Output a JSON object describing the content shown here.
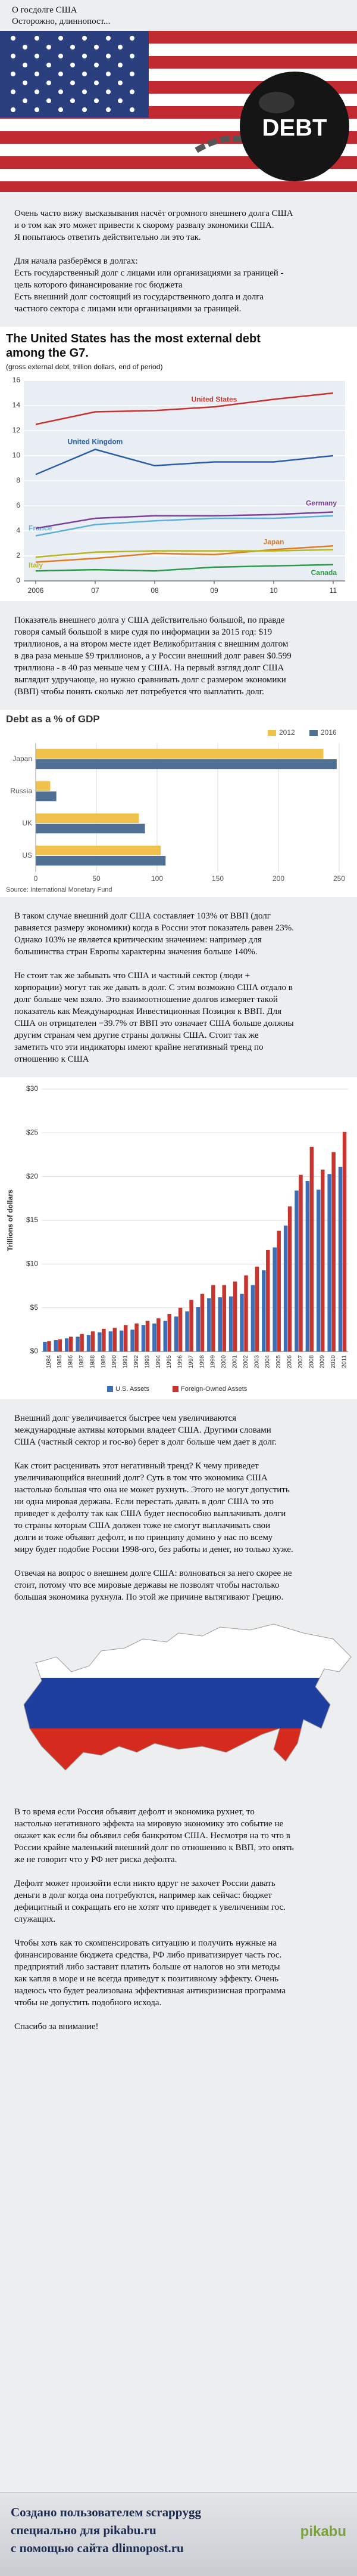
{
  "post": {
    "heading": "О госдолге США",
    "warning": "Осторожно, длиннопост...",
    "image_text": "DEBT",
    "paragraphs": [
      "Очень часто вижу высказывания насчёт огромного внешнего долга США и о том как это может привести к скорому развалу экономики США.",
      "Я попытаюсь ответить действительно ли это так.",
      "Для начала разберёмся в долгах:",
      "Есть государственный долг с лицами или организациями за границей - цель которого финансирование гос бюджета",
      "Есть внешний долг состоящий из государственного долга и долга частного сектора с лицами или организациями за границей.",
      "Показатель внешнего долга у США действительно большой, по правде говоря самый большой в мире судя по информации за 2015 год: $19 триллионов, а на втором месте идет Великобритания с внешним долгом в два раза меньше $9 триллионов, а у России внешний долг равен $0.599 триллиона - в 40 раз меньше чем у США. На первый взгляд долг США выглядит удручающе, но нужно сравнивать долг с размером экономики (ВВП) чтобы понять сколько лет потребуется что выплатить долг.",
      "В таком случае внешний долг США составляет 103% от ВВП (долг равняется размеру экономики) когда в России этот показатель равен 23%. Однако 103% не является критическим значением: например для большинства стран Европы характерны значения больше 140%.",
      "Не стоит так же забывать что США и частный сектор (люди + корпорации) могут так же давать в долг. С этим возможно США отдало в долг больше чем взяло. Это взаимоотношение долгов измеряет такой показатель как Международная Инвестиционная Позиция к ВВП. Для США он отрицателен −39.7% от ВВП это означает США больше должны другим странам чем другие страны должны США. Стоит так же заметить что эти индикаторы имеют крайне негативный тренд по отношению к США",
      "Внешний долг увеличивается быстрее чем увеличиваются международные активы которыми владеет США. Другими словами США (частный сектор и гос-во) берет в долг больше чем дает в долг.",
      "Как стоит расценивать этот негативный тренд? К чему приведет увеличивающийся внешний долг? Суть в том что экономика США настолько большая что она не может рухнуть. Этого не могут допустить ни одна мировая держава. Если перестать давать в долг США то это приведет к дефолту так как США будет неспособно выплачивать долги то страны которым США должен тоже не смогут выплачивать свои долги и тоже объявят дефолт, и по принципу домино у нас по всему миру будет подобие России 1998-ого, без работы и денег, но только хуже.",
      "Отвечая на вопрос о внешнем долге США: волноваться за него скорее не стоит, потому что все мировые державы не позволят чтобы настолько большая экономика рухнула. По этой же причине вытягивают Грецию.",
      "В то время если Россия объявит дефолт и экономика рухнет, то настолько негативного эффекта на мировую экономику это событие не окажет как если бы объявил себя банкротом США. Несмотря на то что в России крайне маленький внешний долг по отношению к ВВП, это опять же не говорит что у РФ нет риска дефолта.",
      "Дефолт может произойти если никто вдруг не захочет России давать деньги в долг когда она потребуются, например как сейчас: бюджет дефицитный и сокращать его не хотят что приведет к увеличениям гос. служащих.",
      "Чтобы хоть как то скомпенсировать ситуацию и получить нужные на финансирование бюджета средства, РФ либо приватизирует часть гос. предприятий либо заставит платить больше от налогов но эти методы как капля в море и не всегда приведут к позитивному эффекту. Очень надеюсь что будет реализована эффективная антикризисная программа чтобы не допустить подобного исхода.",
      "Спасибо за внимание!"
    ],
    "footer": [
      "Создано пользователем scrappygg",
      "специально для pikabu.ru",
      "с помощью сайта dlinnopost.ru"
    ],
    "logo": "pikabu"
  },
  "chart_data": [
    {
      "type": "line",
      "title": "The United States has the most external debt among the G7.",
      "subtitle": "(gross external debt, trillion dollars, end of period)",
      "categories": [
        "2006",
        "07",
        "08",
        "09",
        "10",
        "11"
      ],
      "ylim": [
        0,
        16
      ],
      "yticks": [
        0,
        2,
        4,
        6,
        8,
        10,
        12,
        14,
        16
      ],
      "grid": true,
      "series": [
        {
          "name": "United States",
          "color": "#c8312f",
          "values": [
            12.5,
            13.5,
            13.6,
            13.9,
            14.5,
            15.0
          ]
        },
        {
          "name": "United Kingdom",
          "color": "#2b5ea8",
          "values": [
            8.5,
            10.5,
            9.2,
            9.5,
            9.5,
            10.0
          ]
        },
        {
          "name": "France",
          "color": "#5fb0d8",
          "values": [
            3.6,
            4.5,
            4.8,
            5.0,
            5.0,
            5.2
          ]
        },
        {
          "name": "Germany",
          "color": "#7b3f98",
          "values": [
            4.2,
            5.0,
            5.2,
            5.2,
            5.3,
            5.5
          ]
        },
        {
          "name": "Japan",
          "color": "#e07b22",
          "values": [
            1.5,
            1.8,
            2.2,
            2.1,
            2.5,
            2.8
          ]
        },
        {
          "name": "Italy",
          "color": "#b7b61e",
          "values": [
            1.9,
            2.3,
            2.4,
            2.4,
            2.4,
            2.5
          ]
        },
        {
          "name": "Canada",
          "color": "#2f9a4a",
          "values": [
            0.8,
            0.9,
            0.8,
            1.1,
            1.2,
            1.3
          ]
        }
      ]
    },
    {
      "type": "bar",
      "orientation": "horizontal",
      "title": "Debt as a % of GDP",
      "source": "Source: International Monetary Fund",
      "categories": [
        "Japan",
        "Russia",
        "UK",
        "US"
      ],
      "xlim": [
        0,
        250
      ],
      "xticks": [
        0,
        50,
        100,
        150,
        200,
        250
      ],
      "grid": true,
      "series": [
        {
          "name": "2012",
          "color": "#f0c24b",
          "values": [
            237,
            12,
            85,
            103
          ]
        },
        {
          "name": "2016",
          "color": "#4f6f93",
          "values": [
            248,
            17,
            90,
            107
          ]
        }
      ]
    },
    {
      "type": "bar",
      "orientation": "vertical",
      "ylabel": "Trillions of dollars",
      "categories": [
        "1984",
        "1985",
        "1986",
        "1987",
        "1988",
        "1989",
        "1990",
        "1991",
        "1992",
        "1993",
        "1994",
        "1995",
        "1996",
        "1997",
        "1998",
        "1999",
        "2000",
        "2001",
        "2002",
        "2003",
        "2004",
        "2005",
        "2006",
        "2007",
        "2008",
        "2009",
        "2010",
        "2011"
      ],
      "ylim": [
        0,
        30
      ],
      "yticks": [
        {
          "value": 0,
          "label": "$0"
        },
        {
          "value": 5,
          "label": "$5"
        },
        {
          "value": 10,
          "label": "$10"
        },
        {
          "value": 15,
          "label": "$15"
        },
        {
          "value": 20,
          "label": "$20"
        },
        {
          "value": 25,
          "label": "$25"
        },
        {
          "value": 30,
          "label": "$30"
        }
      ],
      "grid": true,
      "series": [
        {
          "name": "U.S. Assets",
          "color": "#3d6fb6",
          "values": [
            1.1,
            1.3,
            1.5,
            1.7,
            1.9,
            2.2,
            2.3,
            2.4,
            2.5,
            3.0,
            3.2,
            3.5,
            4.0,
            4.6,
            5.1,
            6.1,
            6.2,
            6.3,
            6.6,
            7.6,
            9.3,
            11.9,
            14.4,
            18.4,
            19.5,
            18.5,
            20.3,
            21.1
          ]
        },
        {
          "name": "Foreign-Owned Assets",
          "color": "#c8352e",
          "values": [
            1.2,
            1.4,
            1.7,
            2.0,
            2.3,
            2.6,
            2.7,
            3.0,
            3.2,
            3.5,
            3.8,
            4.3,
            5.0,
            5.9,
            6.6,
            7.6,
            7.6,
            8.0,
            8.7,
            9.7,
            11.6,
            13.8,
            16.6,
            20.2,
            23.4,
            20.8,
            22.8,
            25.1
          ]
        }
      ]
    }
  ]
}
